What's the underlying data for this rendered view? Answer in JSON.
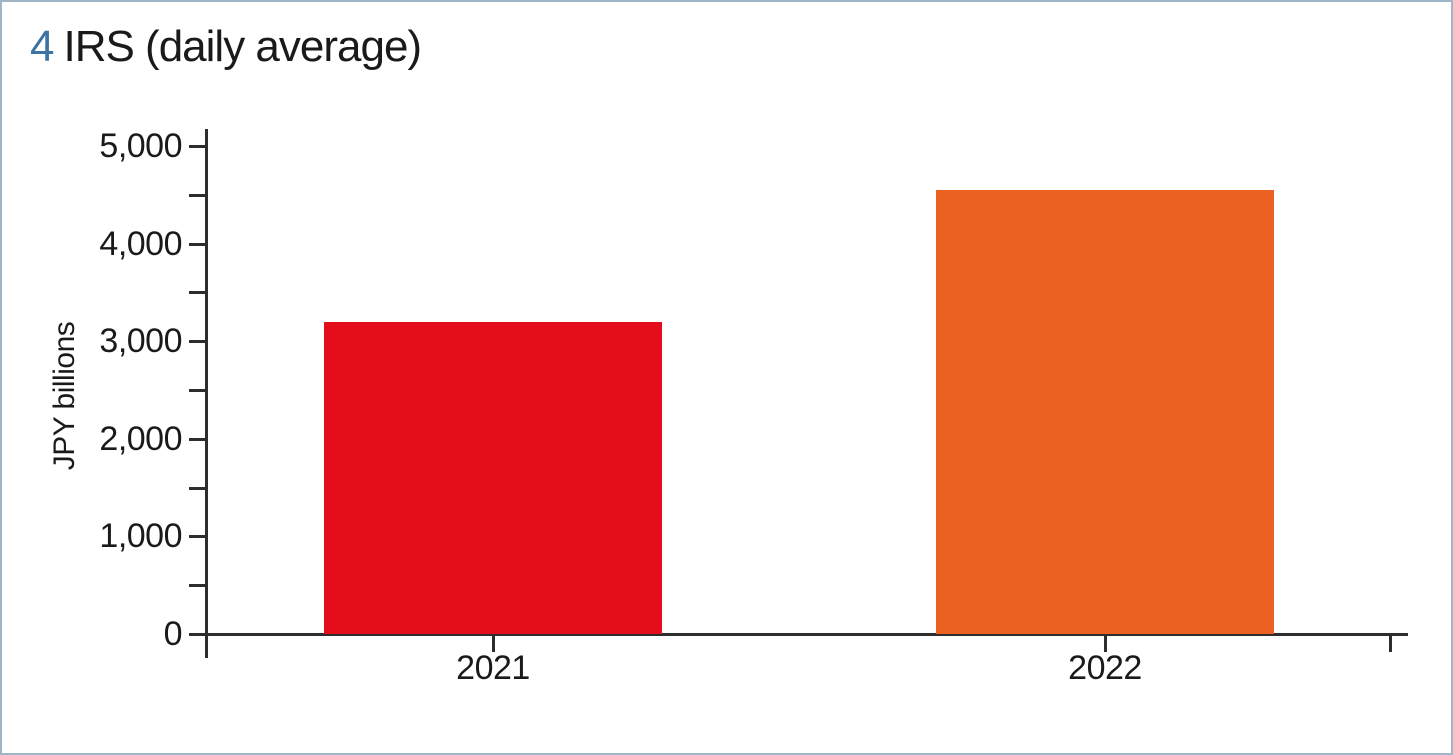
{
  "panel": {
    "border_color": "#9fb6c8",
    "background_color": "#ffffff"
  },
  "chart_data": {
    "type": "bar",
    "title_number": "4",
    "title": "IRS (daily average)",
    "title_number_color": "#3d73a2",
    "title_text_color": "#1a1a1a",
    "ylabel": "JPY billions",
    "categories": [
      "2021",
      "2022"
    ],
    "values": [
      3200,
      4550
    ],
    "bar_colors": [
      "#e30e19",
      "#eb6122"
    ],
    "ylim": [
      0,
      5000
    ],
    "ytick_major_step": 1000,
    "ytick_minor_step": 500,
    "ytick_labels": [
      "0",
      "1,000",
      "2,000",
      "3,000",
      "4,000",
      "5,000"
    ],
    "grid": false,
    "legend": false,
    "x_axis_end_tick": true,
    "axis_color": "#2d2d2d"
  }
}
